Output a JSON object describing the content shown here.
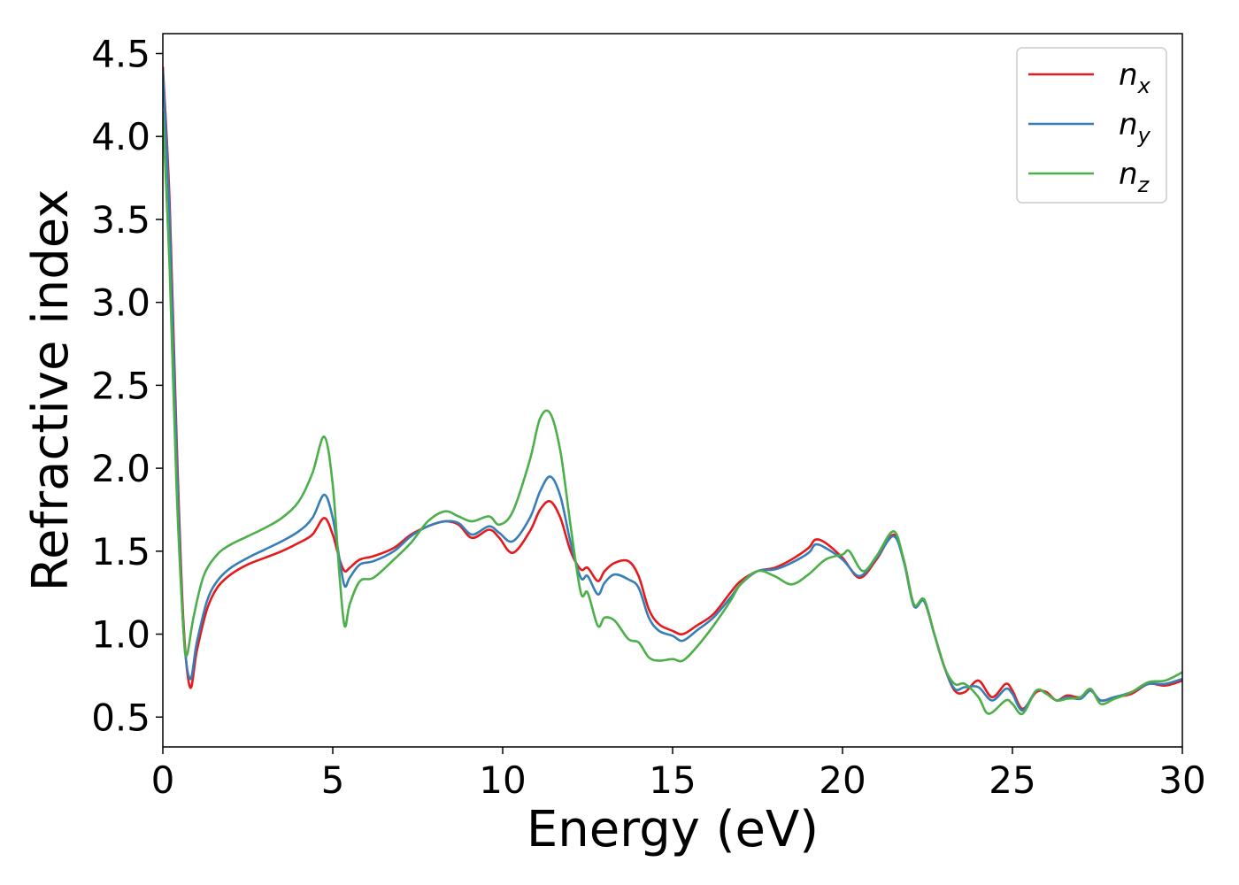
{
  "chart_data": {
    "type": "line",
    "title": "",
    "xlabel": "Energy (eV)",
    "ylabel": "Refractive index",
    "xlim": [
      0,
      30
    ],
    "ylim": [
      0.32,
      4.62
    ],
    "xticks": [
      "0",
      "5",
      "10",
      "15",
      "20",
      "25",
      "30"
    ],
    "yticks": [
      "0.5",
      "1.0",
      "1.5",
      "2.0",
      "2.5",
      "3.0",
      "3.5",
      "4.0",
      "4.5"
    ],
    "grid": false,
    "legend_position": "top-right",
    "series": [
      {
        "name": "n_x",
        "label_base": "n",
        "label_sub": "x",
        "color": "#e41a1c",
        "points": [
          [
            0,
            4.42
          ],
          [
            0.2,
            3.6
          ],
          [
            0.4,
            2.2
          ],
          [
            0.6,
            1.1
          ],
          [
            0.8,
            0.68
          ],
          [
            1.0,
            0.9
          ],
          [
            1.3,
            1.15
          ],
          [
            1.6,
            1.28
          ],
          [
            2.0,
            1.36
          ],
          [
            2.5,
            1.42
          ],
          [
            3.0,
            1.46
          ],
          [
            3.5,
            1.5
          ],
          [
            4.0,
            1.55
          ],
          [
            4.4,
            1.6
          ],
          [
            4.75,
            1.7
          ],
          [
            5.0,
            1.6
          ],
          [
            5.2,
            1.45
          ],
          [
            5.35,
            1.38
          ],
          [
            5.5,
            1.4
          ],
          [
            5.8,
            1.45
          ],
          [
            6.2,
            1.47
          ],
          [
            6.8,
            1.52
          ],
          [
            7.3,
            1.6
          ],
          [
            7.8,
            1.65
          ],
          [
            8.3,
            1.68
          ],
          [
            8.7,
            1.66
          ],
          [
            9.1,
            1.58
          ],
          [
            9.6,
            1.63
          ],
          [
            9.9,
            1.58
          ],
          [
            10.3,
            1.49
          ],
          [
            10.8,
            1.62
          ],
          [
            11.1,
            1.75
          ],
          [
            11.4,
            1.8
          ],
          [
            11.7,
            1.7
          ],
          [
            12.0,
            1.5
          ],
          [
            12.3,
            1.39
          ],
          [
            12.5,
            1.4
          ],
          [
            12.8,
            1.32
          ],
          [
            13.0,
            1.38
          ],
          [
            13.3,
            1.43
          ],
          [
            13.7,
            1.44
          ],
          [
            14.0,
            1.35
          ],
          [
            14.3,
            1.15
          ],
          [
            14.6,
            1.06
          ],
          [
            15.0,
            1.02
          ],
          [
            15.3,
            1.0
          ],
          [
            15.7,
            1.05
          ],
          [
            16.2,
            1.12
          ],
          [
            16.7,
            1.25
          ],
          [
            17.0,
            1.32
          ],
          [
            17.5,
            1.38
          ],
          [
            18.0,
            1.4
          ],
          [
            18.5,
            1.45
          ],
          [
            19.0,
            1.52
          ],
          [
            19.2,
            1.57
          ],
          [
            19.5,
            1.55
          ],
          [
            20.0,
            1.46
          ],
          [
            20.5,
            1.34
          ],
          [
            21.0,
            1.45
          ],
          [
            21.5,
            1.6
          ],
          [
            21.8,
            1.45
          ],
          [
            22.1,
            1.18
          ],
          [
            22.4,
            1.2
          ],
          [
            22.7,
            1.0
          ],
          [
            23.0,
            0.8
          ],
          [
            23.3,
            0.66
          ],
          [
            23.6,
            0.65
          ],
          [
            24.0,
            0.72
          ],
          [
            24.4,
            0.62
          ],
          [
            24.8,
            0.7
          ],
          [
            25.0,
            0.66
          ],
          [
            25.3,
            0.55
          ],
          [
            25.7,
            0.65
          ],
          [
            26.0,
            0.65
          ],
          [
            26.3,
            0.6
          ],
          [
            26.6,
            0.63
          ],
          [
            27.0,
            0.62
          ],
          [
            27.3,
            0.66
          ],
          [
            27.6,
            0.6
          ],
          [
            28.0,
            0.62
          ],
          [
            28.5,
            0.64
          ],
          [
            29.0,
            0.7
          ],
          [
            29.5,
            0.69
          ],
          [
            30.0,
            0.72
          ]
        ]
      },
      {
        "name": "n_y",
        "label_base": "n",
        "label_sub": "y",
        "color": "#377eb8",
        "points": [
          [
            0,
            4.4
          ],
          [
            0.2,
            3.5
          ],
          [
            0.4,
            2.1
          ],
          [
            0.6,
            1.05
          ],
          [
            0.8,
            0.73
          ],
          [
            1.0,
            0.95
          ],
          [
            1.3,
            1.2
          ],
          [
            1.6,
            1.32
          ],
          [
            2.0,
            1.4
          ],
          [
            2.5,
            1.46
          ],
          [
            3.0,
            1.51
          ],
          [
            3.5,
            1.56
          ],
          [
            4.0,
            1.62
          ],
          [
            4.4,
            1.7
          ],
          [
            4.75,
            1.84
          ],
          [
            5.0,
            1.7
          ],
          [
            5.2,
            1.45
          ],
          [
            5.35,
            1.29
          ],
          [
            5.5,
            1.34
          ],
          [
            5.8,
            1.42
          ],
          [
            6.2,
            1.44
          ],
          [
            6.8,
            1.5
          ],
          [
            7.3,
            1.59
          ],
          [
            7.8,
            1.65
          ],
          [
            8.3,
            1.68
          ],
          [
            8.7,
            1.67
          ],
          [
            9.1,
            1.6
          ],
          [
            9.6,
            1.65
          ],
          [
            9.9,
            1.61
          ],
          [
            10.3,
            1.56
          ],
          [
            10.8,
            1.7
          ],
          [
            11.1,
            1.86
          ],
          [
            11.4,
            1.95
          ],
          [
            11.7,
            1.83
          ],
          [
            12.0,
            1.55
          ],
          [
            12.3,
            1.34
          ],
          [
            12.5,
            1.35
          ],
          [
            12.8,
            1.24
          ],
          [
            13.0,
            1.31
          ],
          [
            13.3,
            1.36
          ],
          [
            13.7,
            1.33
          ],
          [
            14.0,
            1.28
          ],
          [
            14.3,
            1.1
          ],
          [
            14.6,
            1.02
          ],
          [
            15.0,
            0.99
          ],
          [
            15.3,
            0.96
          ],
          [
            15.7,
            1.02
          ],
          [
            16.2,
            1.1
          ],
          [
            16.7,
            1.22
          ],
          [
            17.0,
            1.3
          ],
          [
            17.5,
            1.38
          ],
          [
            18.0,
            1.39
          ],
          [
            18.5,
            1.43
          ],
          [
            19.0,
            1.49
          ],
          [
            19.2,
            1.54
          ],
          [
            19.5,
            1.52
          ],
          [
            20.0,
            1.45
          ],
          [
            20.5,
            1.35
          ],
          [
            21.0,
            1.46
          ],
          [
            21.5,
            1.59
          ],
          [
            21.8,
            1.44
          ],
          [
            22.1,
            1.17
          ],
          [
            22.4,
            1.2
          ],
          [
            22.7,
            1.0
          ],
          [
            23.0,
            0.8
          ],
          [
            23.3,
            0.67
          ],
          [
            23.6,
            0.68
          ],
          [
            24.0,
            0.68
          ],
          [
            24.4,
            0.6
          ],
          [
            24.8,
            0.67
          ],
          [
            25.0,
            0.64
          ],
          [
            25.3,
            0.54
          ],
          [
            25.7,
            0.66
          ],
          [
            26.0,
            0.64
          ],
          [
            26.3,
            0.6
          ],
          [
            26.6,
            0.62
          ],
          [
            27.0,
            0.61
          ],
          [
            27.3,
            0.66
          ],
          [
            27.6,
            0.6
          ],
          [
            28.0,
            0.62
          ],
          [
            28.5,
            0.65
          ],
          [
            29.0,
            0.7
          ],
          [
            29.5,
            0.7
          ],
          [
            30.0,
            0.73
          ]
        ]
      },
      {
        "name": "n_z",
        "label_base": "n",
        "label_sub": "z",
        "color": "#4daf4a",
        "points": [
          [
            0,
            4.15
          ],
          [
            0.2,
            3.2
          ],
          [
            0.4,
            1.9
          ],
          [
            0.6,
            1.05
          ],
          [
            0.7,
            0.87
          ],
          [
            0.9,
            1.1
          ],
          [
            1.2,
            1.35
          ],
          [
            1.6,
            1.48
          ],
          [
            2.0,
            1.54
          ],
          [
            2.5,
            1.59
          ],
          [
            3.0,
            1.64
          ],
          [
            3.5,
            1.7
          ],
          [
            4.0,
            1.8
          ],
          [
            4.4,
            1.97
          ],
          [
            4.75,
            2.19
          ],
          [
            5.0,
            1.9
          ],
          [
            5.2,
            1.35
          ],
          [
            5.35,
            1.05
          ],
          [
            5.5,
            1.18
          ],
          [
            5.8,
            1.32
          ],
          [
            6.2,
            1.34
          ],
          [
            6.8,
            1.45
          ],
          [
            7.3,
            1.55
          ],
          [
            7.8,
            1.68
          ],
          [
            8.3,
            1.74
          ],
          [
            8.7,
            1.71
          ],
          [
            9.1,
            1.68
          ],
          [
            9.6,
            1.71
          ],
          [
            9.9,
            1.66
          ],
          [
            10.3,
            1.74
          ],
          [
            10.8,
            2.05
          ],
          [
            11.1,
            2.3
          ],
          [
            11.4,
            2.33
          ],
          [
            11.7,
            2.1
          ],
          [
            12.0,
            1.65
          ],
          [
            12.3,
            1.25
          ],
          [
            12.5,
            1.25
          ],
          [
            12.8,
            1.05
          ],
          [
            13.0,
            1.1
          ],
          [
            13.3,
            1.08
          ],
          [
            13.7,
            0.97
          ],
          [
            14.0,
            0.95
          ],
          [
            14.3,
            0.86
          ],
          [
            14.6,
            0.84
          ],
          [
            15.0,
            0.85
          ],
          [
            15.3,
            0.84
          ],
          [
            15.7,
            0.92
          ],
          [
            16.2,
            1.05
          ],
          [
            16.7,
            1.2
          ],
          [
            17.0,
            1.3
          ],
          [
            17.5,
            1.38
          ],
          [
            18.0,
            1.35
          ],
          [
            18.5,
            1.3
          ],
          [
            19.0,
            1.36
          ],
          [
            19.5,
            1.45
          ],
          [
            20.0,
            1.48
          ],
          [
            20.2,
            1.5
          ],
          [
            20.6,
            1.38
          ],
          [
            21.0,
            1.47
          ],
          [
            21.5,
            1.62
          ],
          [
            21.8,
            1.45
          ],
          [
            22.1,
            1.18
          ],
          [
            22.4,
            1.21
          ],
          [
            22.7,
            1.0
          ],
          [
            23.0,
            0.8
          ],
          [
            23.3,
            0.7
          ],
          [
            23.6,
            0.7
          ],
          [
            24.0,
            0.62
          ],
          [
            24.3,
            0.52
          ],
          [
            24.8,
            0.6
          ],
          [
            25.0,
            0.58
          ],
          [
            25.3,
            0.52
          ],
          [
            25.7,
            0.66
          ],
          [
            26.0,
            0.64
          ],
          [
            26.3,
            0.6
          ],
          [
            26.6,
            0.61
          ],
          [
            27.0,
            0.62
          ],
          [
            27.3,
            0.67
          ],
          [
            27.6,
            0.58
          ],
          [
            28.0,
            0.61
          ],
          [
            28.5,
            0.65
          ],
          [
            29.0,
            0.71
          ],
          [
            29.5,
            0.72
          ],
          [
            30.0,
            0.77
          ]
        ]
      }
    ]
  }
}
